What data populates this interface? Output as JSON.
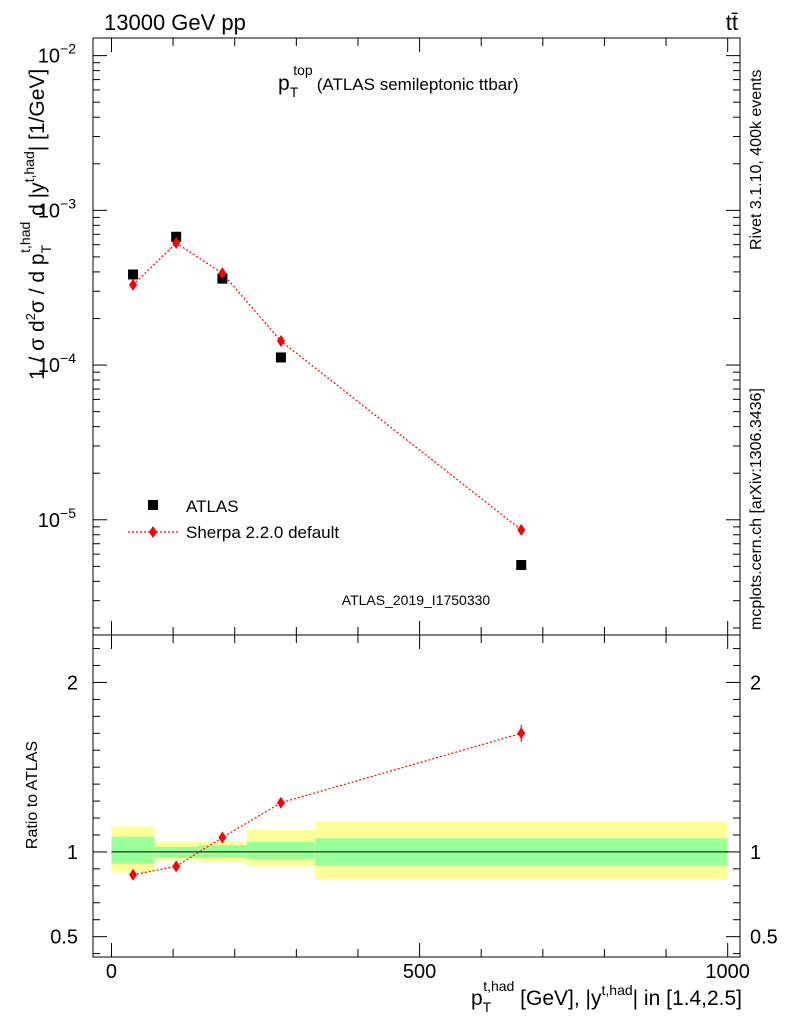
{
  "header": {
    "energy_label": "13000 GeV pp",
    "process_label": "tt̄"
  },
  "side_labels": {
    "rivet": "Rivet 3.1.10,  400k events",
    "mcplots": "mcplots.cern.ch [arXiv:1306.3436]"
  },
  "colors": {
    "data": "#000000",
    "mc": "#ff0000",
    "band_inner": "#99ff99",
    "band_outer": "#ffff99",
    "watermark": "#999999"
  },
  "chart_data": [
    {
      "type": "scatter",
      "log_y": true,
      "title_main": "p",
      "title_sub": "T",
      "title_sup": "top",
      "title_rest": "(ATLAS semileptonic ttbar)",
      "ylabel": "1 / σ d²σ / d p_T^{t,had} d |y^{t,had}| [1/GeV]",
      "ylabel_parts": {
        "a": "1 / σ d",
        "a_sup": "2",
        "b": "σ / d p",
        "b_sub": "T",
        "b_sup": "t,had",
        "c": " d |y",
        "c_sup": "t,had",
        "d": "| [1/GeV]"
      },
      "xlim": [
        -30,
        1020
      ],
      "ylim": [
        1.8e-06,
        0.013
      ],
      "yticks": [
        {
          "value": 1e-05,
          "base": "10",
          "exp": "−5"
        },
        {
          "value": 0.0001,
          "base": "10",
          "exp": "−4"
        },
        {
          "value": 0.001,
          "base": "10",
          "exp": "−3"
        },
        {
          "value": 0.01,
          "base": "10",
          "exp": "−2"
        }
      ],
      "series": [
        {
          "name": "ATLAS",
          "marker": "square",
          "x": [
            35,
            105,
            180,
            275,
            665
          ],
          "y": [
            0.000385,
            0.000675,
            0.000362,
            0.000112,
            5.1e-06
          ]
        },
        {
          "name": "Sherpa 2.2.0 default",
          "marker": "diamond",
          "x": [
            35,
            105,
            180,
            275,
            665
          ],
          "y": [
            0.00033,
            0.000615,
            0.000392,
            0.000143,
            8.6e-06
          ]
        }
      ],
      "watermark": "ATLAS_2019_I1750330"
    },
    {
      "type": "scatter",
      "ylabel": "Ratio to ATLAS",
      "ylim": [
        0.38,
        2.28
      ],
      "yticks": [
        {
          "value": 0.5,
          "label": "0.5"
        },
        {
          "value": 1,
          "label": "1"
        },
        {
          "value": 2,
          "label": "2"
        }
      ],
      "xticks": [
        {
          "value": 0,
          "label": "0"
        },
        {
          "value": 500,
          "label": "500"
        },
        {
          "value": 1000,
          "label": "1000"
        }
      ],
      "xlabel": "p_T^{t,had} [GeV], |y^{t,had}| in [1.4,2.5]",
      "xlabel_parts": {
        "a": "p",
        "a_sub": "T",
        "a_sup": "t,had",
        "b": " [GeV], |y",
        "b_sup": "t,had",
        "c": "| in [1.4,2.5]"
      },
      "bands": [
        {
          "x0": 0,
          "x1": 70,
          "inner": [
            0.93,
            1.09
          ],
          "outer": [
            0.88,
            1.15
          ]
        },
        {
          "x0": 70,
          "x1": 140,
          "inner": [
            0.965,
            1.03
          ],
          "outer": [
            0.95,
            1.06
          ]
        },
        {
          "x0": 140,
          "x1": 220,
          "inner": [
            0.965,
            1.04
          ],
          "outer": [
            0.94,
            1.06
          ]
        },
        {
          "x0": 220,
          "x1": 330,
          "inner": [
            0.955,
            1.06
          ],
          "outer": [
            0.915,
            1.13
          ]
        },
        {
          "x0": 330,
          "x1": 1000,
          "inner": [
            0.92,
            1.08
          ],
          "outer": [
            0.84,
            1.18
          ]
        }
      ],
      "series": [
        {
          "name": "Sherpa 2.2.0 default",
          "x": [
            35,
            105,
            180,
            275,
            665
          ],
          "y": [
            0.865,
            0.915,
            1.085,
            1.29,
            1.7
          ],
          "err": [
            0.01,
            0.01,
            0.015,
            0.02,
            0.05
          ]
        }
      ]
    }
  ]
}
